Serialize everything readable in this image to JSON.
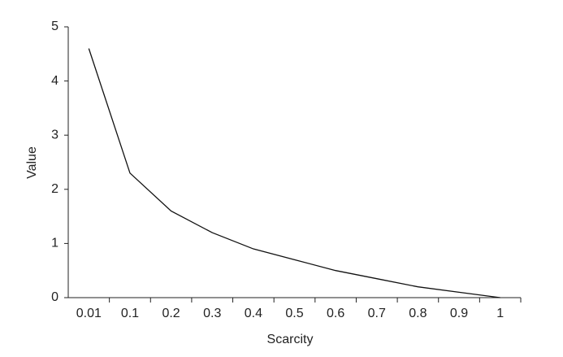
{
  "chart_data": {
    "type": "line",
    "x_label": "Scarcity",
    "y_label": "Value",
    "categories": [
      "0.01",
      "0.1",
      "0.2",
      "0.3",
      "0.4",
      "0.5",
      "0.6",
      "0.7",
      "0.8",
      "0.9",
      "1"
    ],
    "values": [
      4.6,
      2.3,
      1.6,
      1.2,
      0.9,
      0.7,
      0.5,
      0.35,
      0.2,
      0.1,
      0
    ],
    "color": "#111111",
    "ylim": [
      0,
      5
    ],
    "yticks": [
      0,
      1,
      2,
      3,
      4,
      5
    ],
    "grid": false
  }
}
